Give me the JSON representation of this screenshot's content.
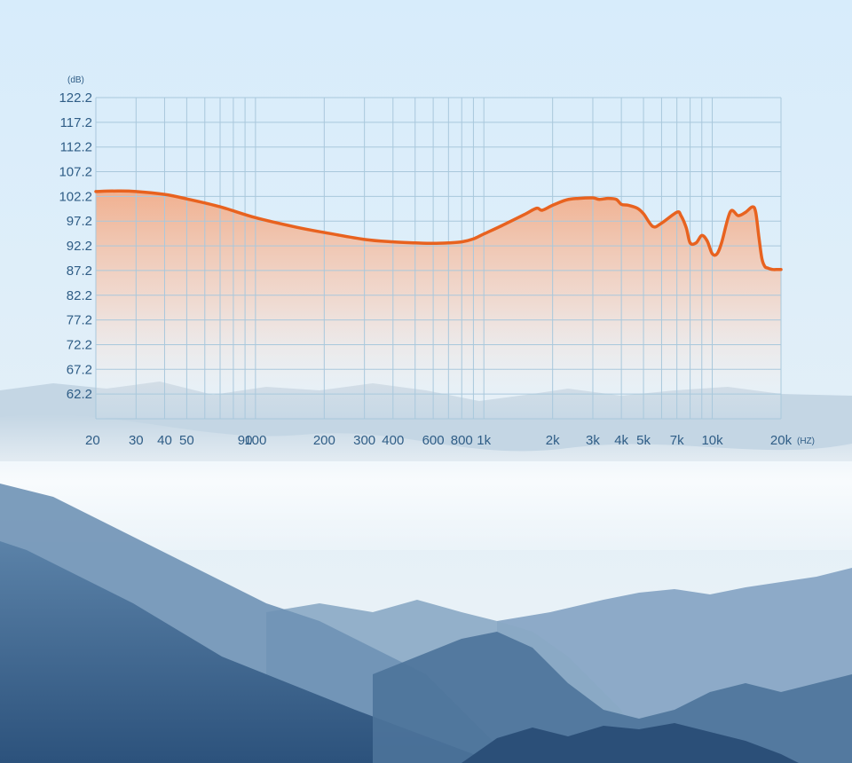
{
  "colors": {
    "sky_top": "#d9eefb",
    "sky_bottom": "#e9f3f8",
    "grid": "#a9c8dc",
    "curve": "#e8621f",
    "fill_top": "#f2b79a",
    "text": "#2f5d86",
    "mountain_far": "#b7cbdb",
    "mountain_mid": "#7f9fbe",
    "mountain_near": "#3f6690",
    "mountain_front": "#2b4f78"
  },
  "chart_data": {
    "type": "area",
    "title": "",
    "ylabel": "(dB)",
    "xlabel": "(HZ)",
    "x_scale": "log",
    "xlim": [
      20,
      20000
    ],
    "ylim": [
      57.2,
      122.2
    ],
    "grid": true,
    "y_ticks": [
      "122.2",
      "117.2",
      "112.2",
      "107.2",
      "102.2",
      "97.2",
      "92.2",
      "87.2",
      "82.2",
      "77.2",
      "72.2",
      "67.2",
      "62.2"
    ],
    "y_tick_values": [
      122.2,
      117.2,
      112.2,
      107.2,
      102.2,
      97.2,
      92.2,
      87.2,
      82.2,
      77.2,
      72.2,
      67.2,
      62.2
    ],
    "x_ticks": [
      {
        "label": "20",
        "value": 20
      },
      {
        "label": "30",
        "value": 30
      },
      {
        "label": "40",
        "value": 40
      },
      {
        "label": "50",
        "value": 50
      },
      {
        "label": "90",
        "value": 90
      },
      {
        "label": "100",
        "value": 100
      },
      {
        "label": "200",
        "value": 200
      },
      {
        "label": "300",
        "value": 300
      },
      {
        "label": "400",
        "value": 400
      },
      {
        "label": "600",
        "value": 600
      },
      {
        "label": "800",
        "value": 800
      },
      {
        "label": "1k",
        "value": 1000
      },
      {
        "label": "2k",
        "value": 2000
      },
      {
        "label": "3k",
        "value": 3000
      },
      {
        "label": "4k",
        "value": 4000
      },
      {
        "label": "5k",
        "value": 5000
      },
      {
        "label": "7k",
        "value": 7000
      },
      {
        "label": "10k",
        "value": 10000
      },
      {
        "label": "20k",
        "value": 20000
      }
    ],
    "x_grid_values": [
      20,
      30,
      40,
      50,
      60,
      70,
      80,
      90,
      100,
      200,
      300,
      400,
      500,
      600,
      700,
      800,
      900,
      1000,
      2000,
      3000,
      4000,
      5000,
      6000,
      7000,
      8000,
      9000,
      10000,
      20000
    ],
    "series": [
      {
        "x": [
          20,
          25,
          30,
          40,
          50,
          70,
          100,
          150,
          200,
          300,
          400,
          500,
          600,
          700,
          800,
          900,
          1000,
          1200,
          1500,
          1700,
          1800,
          2000,
          2300,
          2600,
          3000,
          3200,
          3500,
          3800,
          4000,
          4300,
          4700,
          5000,
          5500,
          6000,
          7000,
          7300,
          7700,
          8000,
          8500,
          9000,
          9500,
          10000,
          10500,
          11000,
          12000,
          13000,
          14000,
          15000,
          15500,
          16000,
          16500,
          17000,
          17500,
          18000,
          18500,
          19000,
          20000
        ],
        "y": [
          103.2,
          103.3,
          103.2,
          102.6,
          101.7,
          100.1,
          97.9,
          96.0,
          94.9,
          93.5,
          93.0,
          92.8,
          92.7,
          92.8,
          93.0,
          93.6,
          94.6,
          96.3,
          98.5,
          99.8,
          99.4,
          100.4,
          101.5,
          101.8,
          101.9,
          101.6,
          101.8,
          101.6,
          100.6,
          100.4,
          99.8,
          98.7,
          96.1,
          96.8,
          99.0,
          98.3,
          95.8,
          92.8,
          92.8,
          94.3,
          93.2,
          90.6,
          90.6,
          92.9,
          99.1,
          98.3,
          99.0,
          100.1,
          99.0,
          94.0,
          89.6,
          88.0,
          87.7,
          87.5,
          87.4,
          87.4,
          87.4
        ]
      }
    ]
  }
}
